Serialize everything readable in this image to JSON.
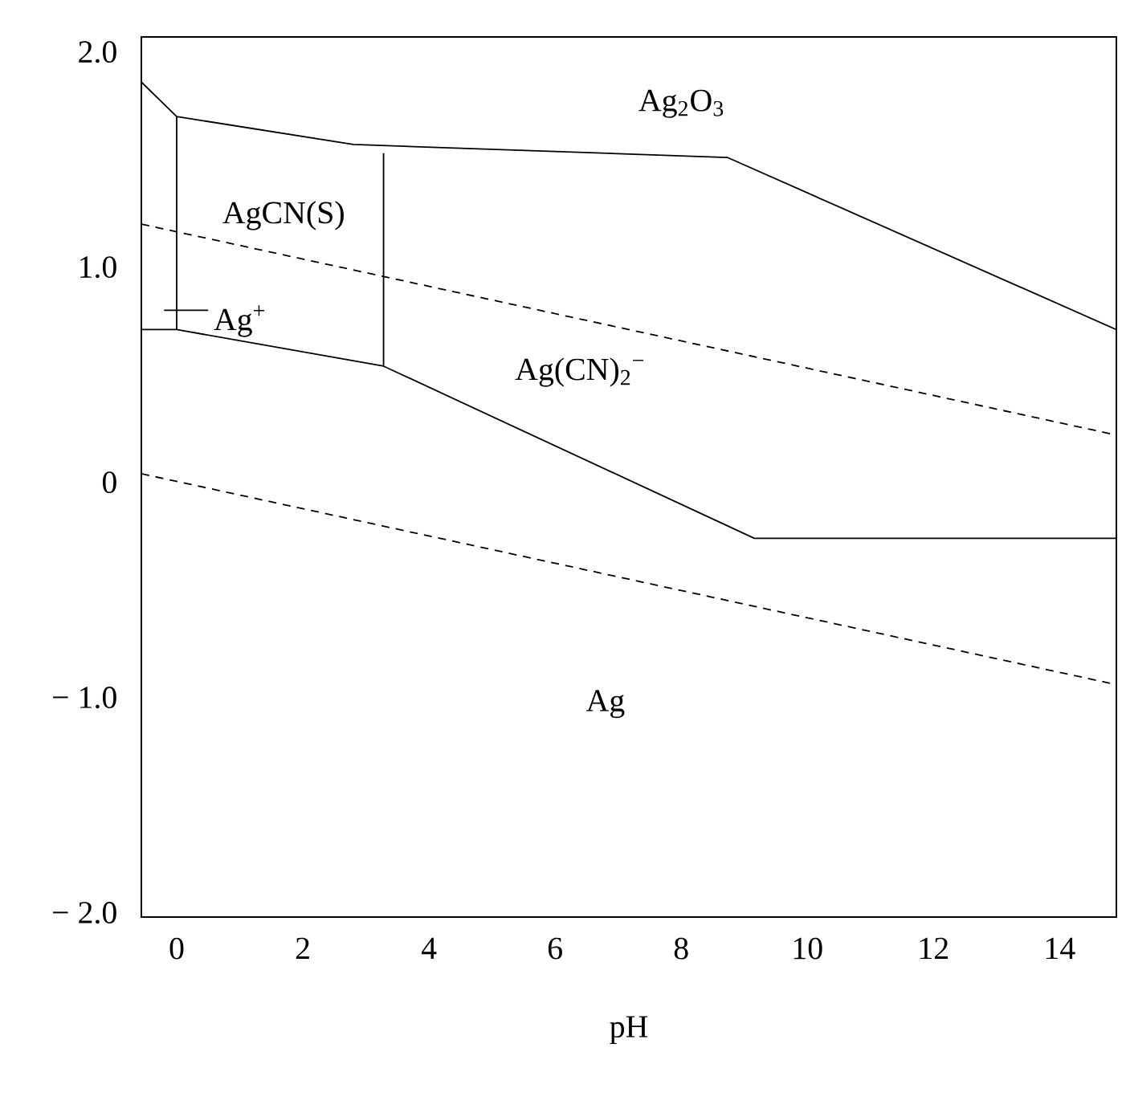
{
  "chart_data": {
    "type": "line",
    "xlabel": "pH",
    "xlim": [
      -0.56,
      14.9
    ],
    "ylim": [
      -2.02,
      2.07
    ],
    "xticks": [
      0,
      2,
      4,
      6,
      8,
      10,
      12,
      14
    ],
    "yticks": [
      {
        "value": 2.0,
        "label": "2.0"
      },
      {
        "value": 1.0,
        "label": "1.0"
      },
      {
        "value": 0,
        "label": "0"
      },
      {
        "value": -1.0,
        "label": "− 1.0"
      },
      {
        "value": -2.0,
        "label": "− 2.0"
      }
    ],
    "grid": false,
    "marker": "none",
    "series": [
      {
        "x": [
          -0.56,
          14.9
        ],
        "values": [
          1.2,
          0.22
        ],
        "color": "#000000",
        "line_style": "dashed"
      },
      {
        "x": [
          -0.56,
          14.9
        ],
        "values": [
          0.04,
          -0.94
        ],
        "color": "#000000",
        "line_style": "dashed"
      },
      {
        "x": [
          -0.56,
          0,
          2.8,
          8.73,
          14.9
        ],
        "values": [
          1.86,
          1.7,
          1.57,
          1.51,
          0.71
        ],
        "color": "#000000",
        "line_style": "solid"
      },
      {
        "x": [
          -0.56,
          0,
          3.28,
          9.16,
          14.9
        ],
        "values": [
          0.71,
          0.71,
          0.54,
          -0.26,
          -0.26
        ],
        "color": "#000000",
        "line_style": "solid"
      },
      {
        "x": [
          0,
          0
        ],
        "values": [
          1.7,
          0.71
        ],
        "color": "#000000",
        "line_style": "solid"
      },
      {
        "x": [
          3.28,
          3.28
        ],
        "values": [
          1.53,
          0.54
        ],
        "color": "#000000",
        "line_style": "solid"
      },
      {
        "x": [
          -0.2,
          0.5
        ],
        "values": [
          0.8,
          0.8
        ],
        "color": "#000000",
        "line_style": "solid"
      }
    ],
    "annotations": [
      "Ag$_{2}$O$_{3}$",
      "AgCN(S)",
      "Ag$^{+}$",
      "Ag(CN)$_{2}$$^{−}$",
      "Ag"
    ]
  }
}
